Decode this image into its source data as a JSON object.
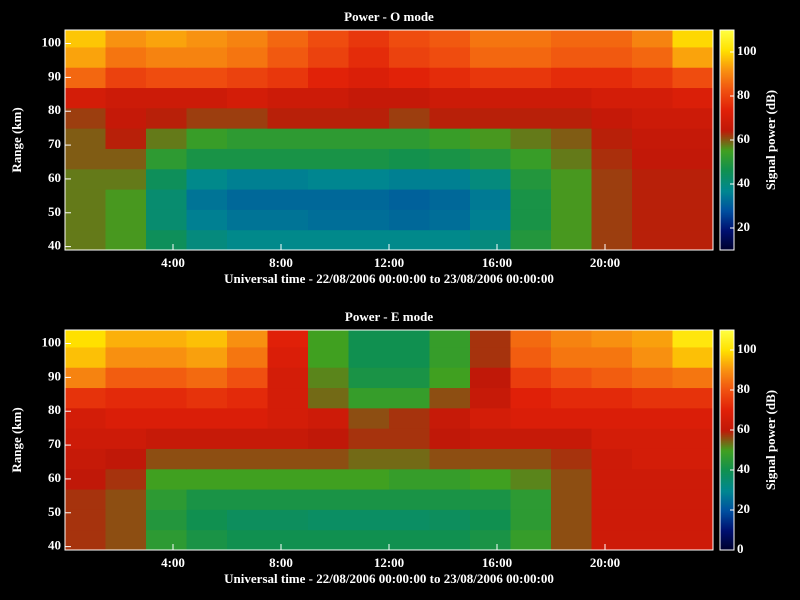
{
  "chart_data": [
    {
      "type": "heatmap",
      "title": "Power - O mode",
      "xlabel": "Universal time - 22/08/2006 00:00:00 to 23/08/2006 00:00:00",
      "ylabel": "Range (km)",
      "colorbar_label": "Signal power (dB)",
      "xlim": [
        0,
        24
      ],
      "ylim": [
        39,
        104
      ],
      "xticks": [
        {
          "value": 4,
          "label": "4:00"
        },
        {
          "value": 8,
          "label": "8:00"
        },
        {
          "value": 12,
          "label": "12:00"
        },
        {
          "value": 16,
          "label": "16:00"
        },
        {
          "value": 20,
          "label": "20:00"
        }
      ],
      "yticks": [
        40,
        50,
        60,
        70,
        80,
        90,
        100
      ],
      "clim": [
        10,
        110
      ],
      "cticks": [
        20,
        40,
        60,
        80,
        100
      ],
      "colorscale": [
        "#00002a",
        "#001070",
        "#0050a0",
        "#008890",
        "#109050",
        "#40a020",
        "#c01808",
        "#e02008",
        "#f05010",
        "#f89010",
        "#ffe000",
        "#ffff40"
      ],
      "x_edges": [
        0,
        1.5,
        3,
        4.5,
        6,
        7.5,
        9,
        10.5,
        12,
        13.5,
        15,
        16.5,
        18,
        19.5,
        21,
        22.5,
        24
      ],
      "y_edges": [
        39,
        45,
        51,
        57,
        63,
        69,
        75,
        81,
        87,
        93,
        99,
        104
      ],
      "z": [
        [
          58,
          56,
          45,
          40,
          38,
          38,
          38,
          38,
          38,
          38,
          40,
          50,
          56,
          62,
          64,
          64
        ],
        [
          58,
          56,
          42,
          36,
          34,
          34,
          33,
          33,
          32,
          33,
          36,
          48,
          56,
          62,
          64,
          64
        ],
        [
          58,
          56,
          42,
          34,
          32,
          32,
          32,
          32,
          31,
          32,
          35,
          48,
          56,
          62,
          64,
          64
        ],
        [
          58,
          58,
          45,
          38,
          36,
          36,
          37,
          37,
          36,
          36,
          40,
          50,
          56,
          62,
          64,
          64
        ],
        [
          60,
          60,
          52,
          48,
          48,
          48,
          48,
          48,
          47,
          48,
          50,
          54,
          58,
          63,
          65,
          65
        ],
        [
          60,
          64,
          58,
          54,
          52,
          52,
          52,
          52,
          52,
          54,
          56,
          58,
          60,
          64,
          66,
          66
        ],
        [
          62,
          66,
          64,
          62,
          62,
          64,
          64,
          64,
          62,
          64,
          64,
          64,
          64,
          66,
          68,
          68
        ],
        [
          70,
          68,
          68,
          68,
          70,
          68,
          68,
          66,
          66,
          68,
          68,
          68,
          68,
          70,
          70,
          72
        ],
        [
          86,
          80,
          82,
          82,
          80,
          78,
          74,
          72,
          74,
          76,
          78,
          78,
          76,
          76,
          78,
          82
        ],
        [
          94,
          88,
          90,
          90,
          88,
          84,
          80,
          76,
          80,
          82,
          86,
          86,
          84,
          84,
          86,
          94
        ],
        [
          98,
          92,
          94,
          92,
          90,
          86,
          82,
          78,
          82,
          84,
          88,
          88,
          86,
          86,
          90,
          100
        ]
      ]
    },
    {
      "type": "heatmap",
      "title": "Power - E mode",
      "xlabel": "Universal time - 22/08/2006 00:00:00 to 23/08/2006 00:00:00",
      "ylabel": "Range (km)",
      "colorbar_label": "Signal power (dB)",
      "xlim": [
        0,
        24
      ],
      "ylim": [
        39,
        104
      ],
      "xticks": [
        {
          "value": 4,
          "label": "4:00"
        },
        {
          "value": 8,
          "label": "8:00"
        },
        {
          "value": 12,
          "label": "12:00"
        },
        {
          "value": 16,
          "label": "16:00"
        },
        {
          "value": 20,
          "label": "20:00"
        }
      ],
      "yticks": [
        40,
        50,
        60,
        70,
        80,
        90,
        100
      ],
      "clim": [
        0,
        110
      ],
      "cticks": [
        0,
        20,
        40,
        60,
        80,
        100
      ],
      "colorscale": [
        "#00002a",
        "#001070",
        "#0050a0",
        "#008890",
        "#109050",
        "#40a020",
        "#c01808",
        "#e02008",
        "#f05010",
        "#f89010",
        "#ffe000",
        "#ffff40"
      ],
      "x_edges": [
        0,
        1.5,
        3,
        4.5,
        6,
        7.5,
        9,
        10.5,
        12,
        13.5,
        15,
        16.5,
        18,
        19.5,
        21,
        22.5,
        24
      ],
      "y_edges": [
        39,
        45,
        51,
        57,
        63,
        69,
        75,
        81,
        87,
        93,
        99,
        104
      ],
      "z": [
        [
          58,
          56,
          46,
          42,
          40,
          40,
          40,
          40,
          40,
          40,
          42,
          48,
          56,
          64,
          64,
          64
        ],
        [
          58,
          56,
          44,
          40,
          38,
          38,
          37,
          37,
          37,
          38,
          40,
          46,
          56,
          64,
          64,
          64
        ],
        [
          58,
          56,
          46,
          42,
          42,
          42,
          42,
          42,
          42,
          42,
          42,
          46,
          56,
          64,
          64,
          64
        ],
        [
          60,
          58,
          50,
          50,
          50,
          50,
          50,
          50,
          48,
          48,
          50,
          52,
          56,
          64,
          64,
          64
        ],
        [
          62,
          60,
          56,
          56,
          56,
          56,
          56,
          54,
          54,
          56,
          56,
          56,
          58,
          64,
          66,
          66
        ],
        [
          64,
          64,
          62,
          62,
          62,
          62,
          60,
          58,
          58,
          60,
          62,
          62,
          62,
          66,
          66,
          66
        ],
        [
          66,
          68,
          68,
          68,
          68,
          66,
          64,
          56,
          58,
          62,
          66,
          68,
          68,
          68,
          68,
          68
        ],
        [
          74,
          72,
          72,
          74,
          72,
          66,
          54,
          48,
          48,
          56,
          62,
          70,
          72,
          72,
          74,
          74
        ],
        [
          88,
          82,
          82,
          84,
          80,
          66,
          52,
          42,
          42,
          50,
          60,
          76,
          80,
          82,
          84,
          86
        ],
        [
          96,
          90,
          90,
          92,
          86,
          68,
          50,
          40,
          40,
          48,
          58,
          82,
          86,
          86,
          90,
          96
        ],
        [
          100,
          94,
          94,
          96,
          90,
          70,
          50,
          40,
          40,
          48,
          58,
          84,
          88,
          90,
          92,
          102
        ]
      ]
    }
  ]
}
